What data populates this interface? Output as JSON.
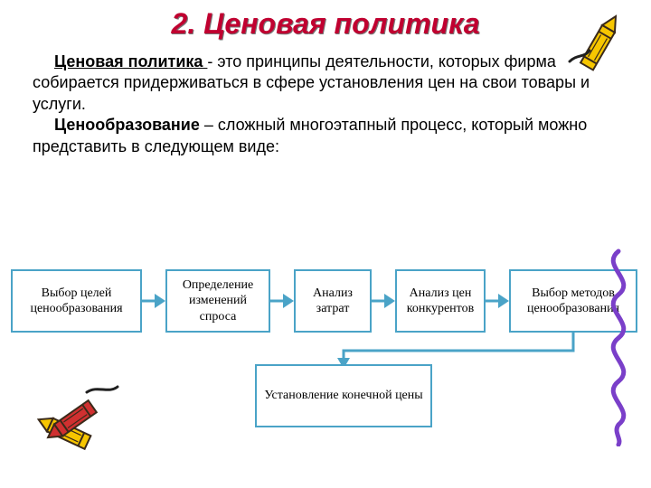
{
  "title": {
    "text": "2. Ценовая политика",
    "color": "#c00030"
  },
  "paragraph1": {
    "term": "Ценовая политика ",
    "rest": "- это принципы деятельности, которых фирма собирается придерживаться в сфере установления цен на свои товары и услуги."
  },
  "paragraph2": {
    "term": "Ценообразование",
    "rest": " – сложный многоэтапный процесс, который можно представить в следующем виде:"
  },
  "flow": {
    "box_border": "#4aa3c7",
    "arrow_color": "#4aa3c7",
    "boxes": [
      {
        "text": "Выбор целей ценообразования",
        "width": 145
      },
      {
        "text": "Определение изменений спроса",
        "width": 116
      },
      {
        "text": "Анализ затрат",
        "width": 86
      },
      {
        "text": "Анализ цен конкурентов",
        "width": 100
      },
      {
        "text": "Выбор методов ценообразования",
        "width": 142
      }
    ],
    "final": "Установление конечной цены"
  },
  "decor": {
    "crayon_yellow": "#f7c600",
    "crayon_red": "#d03030",
    "crayon_outline": "#3a2a1a",
    "crayon_stroke": "#202020",
    "squiggle_color": "#7a3fc9"
  }
}
